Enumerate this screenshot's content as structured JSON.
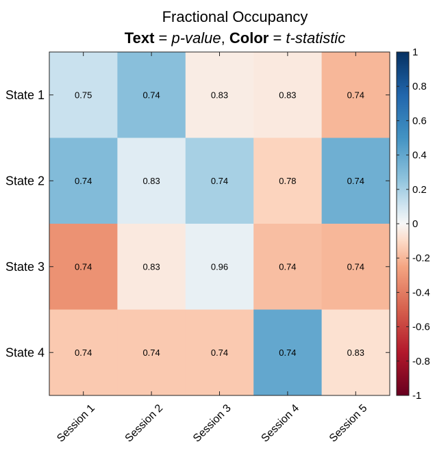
{
  "chart_data": {
    "type": "heatmap",
    "title": {
      "line1": "Fractional Occupancy",
      "line2": {
        "text_bold": "Text",
        "eq1": " = ",
        "text_italic": "p-value",
        "sep": ", ",
        "color_bold": "Color",
        "eq2": " = ",
        "color_italic": "t-statistic"
      }
    },
    "rows": [
      "State 1",
      "State 2",
      "State 3",
      "State 4"
    ],
    "columns": [
      "Session 1",
      "Session 2",
      "Session 3",
      "Session 4",
      "Session 5"
    ],
    "p_values": [
      [
        "0.75",
        "0.74",
        "0.83",
        "0.83",
        "0.74"
      ],
      [
        "0.74",
        "0.83",
        "0.74",
        "0.78",
        "0.74"
      ],
      [
        "0.74",
        "0.83",
        "0.96",
        "0.74",
        "0.74"
      ],
      [
        "0.74",
        "0.74",
        "0.74",
        "0.74",
        "0.83"
      ]
    ],
    "t_statistics": [
      [
        0.12,
        0.28,
        -0.04,
        -0.05,
        -0.2
      ],
      [
        0.3,
        0.06,
        0.2,
        -0.12,
        0.36
      ],
      [
        -0.32,
        -0.05,
        0.04,
        -0.18,
        -0.2
      ],
      [
        -0.15,
        -0.15,
        -0.15,
        0.4,
        -0.08
      ]
    ],
    "colorbar": {
      "range": [
        -1,
        1
      ],
      "ticks": [
        1,
        0.8,
        0.6,
        0.4,
        0.2,
        0,
        -0.2,
        -0.4,
        -0.6,
        -0.8,
        -1
      ],
      "tick_labels": [
        "1",
        "0.8",
        "0.6",
        "0.4",
        "0.2",
        "0",
        "-0.2",
        "-0.4",
        "-0.6",
        "-0.8",
        "-1"
      ],
      "colormap": "diverging-blue-white-red",
      "stops": [
        {
          "v": -1.0,
          "color": "#67001f"
        },
        {
          "v": -0.75,
          "color": "#b2182b"
        },
        {
          "v": -0.5,
          "color": "#d6604d"
        },
        {
          "v": -0.25,
          "color": "#f4a582"
        },
        {
          "v": -0.1,
          "color": "#fddbc7"
        },
        {
          "v": 0.0,
          "color": "#f7f7f7"
        },
        {
          "v": 0.1,
          "color": "#d1e5f0"
        },
        {
          "v": 0.25,
          "color": "#92c5de"
        },
        {
          "v": 0.5,
          "color": "#4393c3"
        },
        {
          "v": 0.75,
          "color": "#2166ac"
        },
        {
          "v": 1.0,
          "color": "#053061"
        }
      ]
    }
  }
}
